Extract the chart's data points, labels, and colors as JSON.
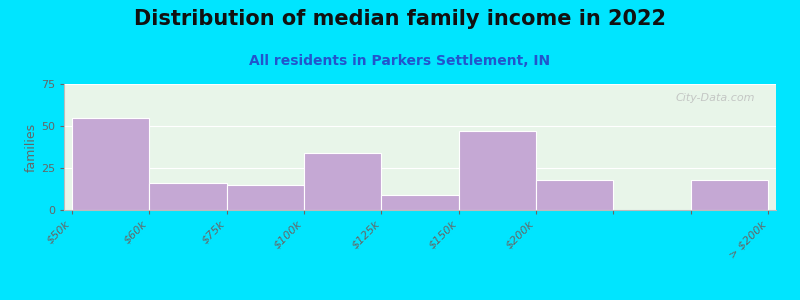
{
  "title": "Distribution of median family income in 2022",
  "subtitle": "All residents in Parkers Settlement, IN",
  "tick_labels": [
    "$50k",
    "$60k",
    "$75k",
    "$100k",
    "$125k",
    "$150k",
    "$200k",
    "",
    "> $200k"
  ],
  "values": [
    55,
    16,
    15,
    34,
    9,
    47,
    18,
    18
  ],
  "bar_color": "#c5a8d4",
  "ylabel": "families",
  "ylim": [
    0,
    75
  ],
  "yticks": [
    0,
    25,
    50,
    75
  ],
  "background_color": "#00e5ff",
  "plot_bg_color": "#e8f5e9",
  "watermark": "City-Data.com",
  "title_fontsize": 15,
  "subtitle_fontsize": 10,
  "ylabel_fontsize": 9,
  "tick_label_fontsize": 8
}
